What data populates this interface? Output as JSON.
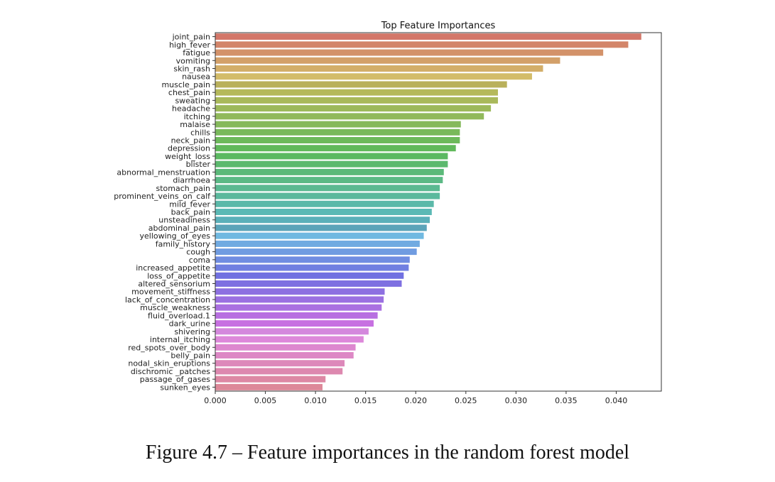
{
  "caption": "Figure 4.7 – Feature importances in the random forest model",
  "chart_data": {
    "type": "bar",
    "orientation": "horizontal",
    "title": "Top Feature Importances",
    "xlabel": "",
    "ylabel": "",
    "xlim": [
      0,
      0.0445
    ],
    "xticks": [
      "0.000",
      "0.005",
      "0.010",
      "0.015",
      "0.020",
      "0.025",
      "0.030",
      "0.035",
      "0.040"
    ],
    "grid": false,
    "categories": [
      "joint_pain",
      "high_fever",
      "fatigue",
      "vomiting",
      "skin_rash",
      "nausea",
      "muscle_pain",
      "chest_pain",
      "sweating",
      "headache",
      "itching",
      "malaise",
      "chills",
      "neck_pain",
      "depression",
      "weight_loss",
      "blister",
      "abnormal_menstruation",
      "diarrhoea",
      "stomach_pain",
      "prominent_veins_on_calf",
      "mild_fever",
      "back_pain",
      "unsteadiness",
      "abdominal_pain",
      "yellowing_of_eyes",
      "family_history",
      "cough",
      "coma",
      "increased_appetite",
      "loss_of_appetite",
      "altered_sensorium",
      "movement_stiffness",
      "lack_of_concentration",
      "muscle_weakness",
      "fluid_overload.1",
      "dark_urine",
      "shivering",
      "internal_itching",
      "red_spots_over_body",
      "belly_pain",
      "nodal_skin_eruptions",
      "dischromic _patches",
      "passage_of_gases",
      "sunken_eyes"
    ],
    "values": [
      0.0425,
      0.0412,
      0.0387,
      0.0344,
      0.0327,
      0.0316,
      0.0291,
      0.0282,
      0.0282,
      0.0275,
      0.0268,
      0.0245,
      0.0244,
      0.0244,
      0.024,
      0.0232,
      0.0232,
      0.0228,
      0.0227,
      0.0224,
      0.0224,
      0.0218,
      0.0216,
      0.0214,
      0.0211,
      0.0208,
      0.0204,
      0.0201,
      0.0194,
      0.0193,
      0.0188,
      0.0186,
      0.0169,
      0.0168,
      0.0166,
      0.0162,
      0.0158,
      0.0153,
      0.0148,
      0.014,
      0.0138,
      0.0129,
      0.0127,
      0.011,
      0.0107
    ],
    "palette": "husl"
  }
}
